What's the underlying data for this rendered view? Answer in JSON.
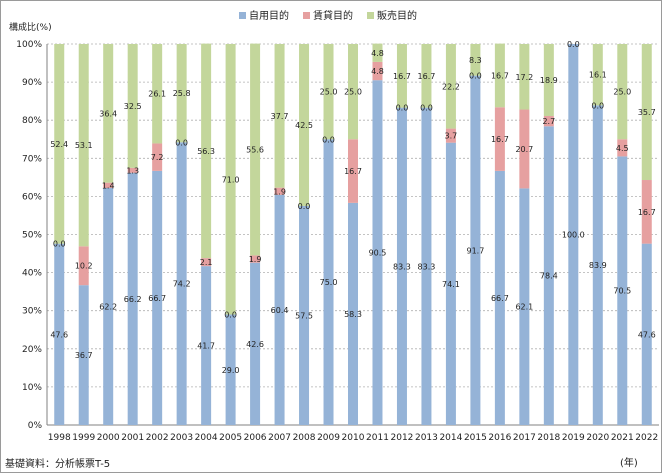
{
  "chart_data": {
    "type": "bar",
    "stacked": true,
    "percent": true,
    "ylabel": "構成比(%)",
    "xunit": "(年)",
    "source": "基礎資料：分析帳票T-5",
    "ylim": [
      0,
      100
    ],
    "yticks": [
      "0%",
      "10%",
      "20%",
      "30%",
      "40%",
      "50%",
      "60%",
      "70%",
      "80%",
      "90%",
      "100%"
    ],
    "grid": "horizontal-dashed",
    "legend_position": "top",
    "categories": [
      "1998",
      "1999",
      "2000",
      "2001",
      "2002",
      "2003",
      "2004",
      "2005",
      "2006",
      "2007",
      "2008",
      "2009",
      "2010",
      "2011",
      "2012",
      "2013",
      "2014",
      "2015",
      "2016",
      "2017",
      "2018",
      "2019",
      "2020",
      "2021",
      "2022"
    ],
    "series": [
      {
        "name": "自用目的",
        "color": "#95b3d7",
        "values": [
          47.6,
          36.7,
          62.2,
          66.2,
          66.7,
          74.2,
          41.7,
          29.0,
          42.6,
          60.4,
          57.5,
          75.0,
          58.3,
          90.5,
          83.3,
          83.3,
          74.1,
          91.7,
          66.7,
          62.1,
          78.4,
          100.0,
          83.9,
          70.5,
          47.6
        ],
        "labels": [
          "47.6",
          "36.7",
          "62.2",
          "66.2",
          "66.7",
          "74.2",
          "41.7",
          "29.0",
          "42.6",
          "60.4",
          "57.5",
          "75.0",
          "58.3",
          "90.5",
          "83.3",
          "83.3",
          "74.1",
          "91.7",
          "66.7",
          "62.1",
          "78.4",
          "100.0",
          "83.9",
          "70.5",
          "47.6"
        ]
      },
      {
        "name": "賃貸目的",
        "color": "#e6a0a0",
        "values": [
          0.0,
          10.2,
          1.4,
          1.3,
          7.2,
          0.0,
          2.1,
          0.0,
          1.9,
          1.9,
          0.0,
          0.0,
          16.7,
          4.8,
          0.0,
          0.0,
          3.7,
          0.0,
          16.7,
          20.7,
          2.7,
          0.0,
          0.0,
          4.5,
          16.7
        ],
        "labels": [
          "0.0",
          "10.2",
          "1.4",
          "1.3",
          "7.2",
          "0.0",
          "2.1",
          "0.0",
          "1.9",
          "1.9",
          "0.0",
          "0.0",
          "16.7",
          "4.8",
          "0.0",
          "0.0",
          "3.7",
          "0.0",
          "16.7",
          "20.7",
          "2.7",
          "0.0",
          "0.0",
          "4.5",
          "16.7"
        ]
      },
      {
        "name": "販売目的",
        "color": "#c3d69b",
        "values": [
          52.4,
          53.1,
          36.4,
          32.5,
          26.1,
          25.8,
          56.3,
          71.0,
          55.6,
          37.7,
          42.5,
          25.0,
          25.0,
          4.8,
          16.7,
          16.7,
          22.2,
          8.3,
          16.7,
          17.2,
          18.9,
          0.0,
          16.1,
          25.0,
          35.7
        ],
        "labels": [
          "52.4",
          "53.1",
          "36.4",
          "32.5",
          "26.1",
          "25.8",
          "56.3",
          "71.0",
          "55.6",
          "37.7",
          "42.5",
          "25.0",
          "25.0",
          "4.8",
          "16.7",
          "16.7",
          "22.2",
          "8.3",
          "16.7",
          "17.2",
          "18.9",
          "",
          "16.1",
          "25.0",
          "35.7"
        ]
      }
    ]
  }
}
